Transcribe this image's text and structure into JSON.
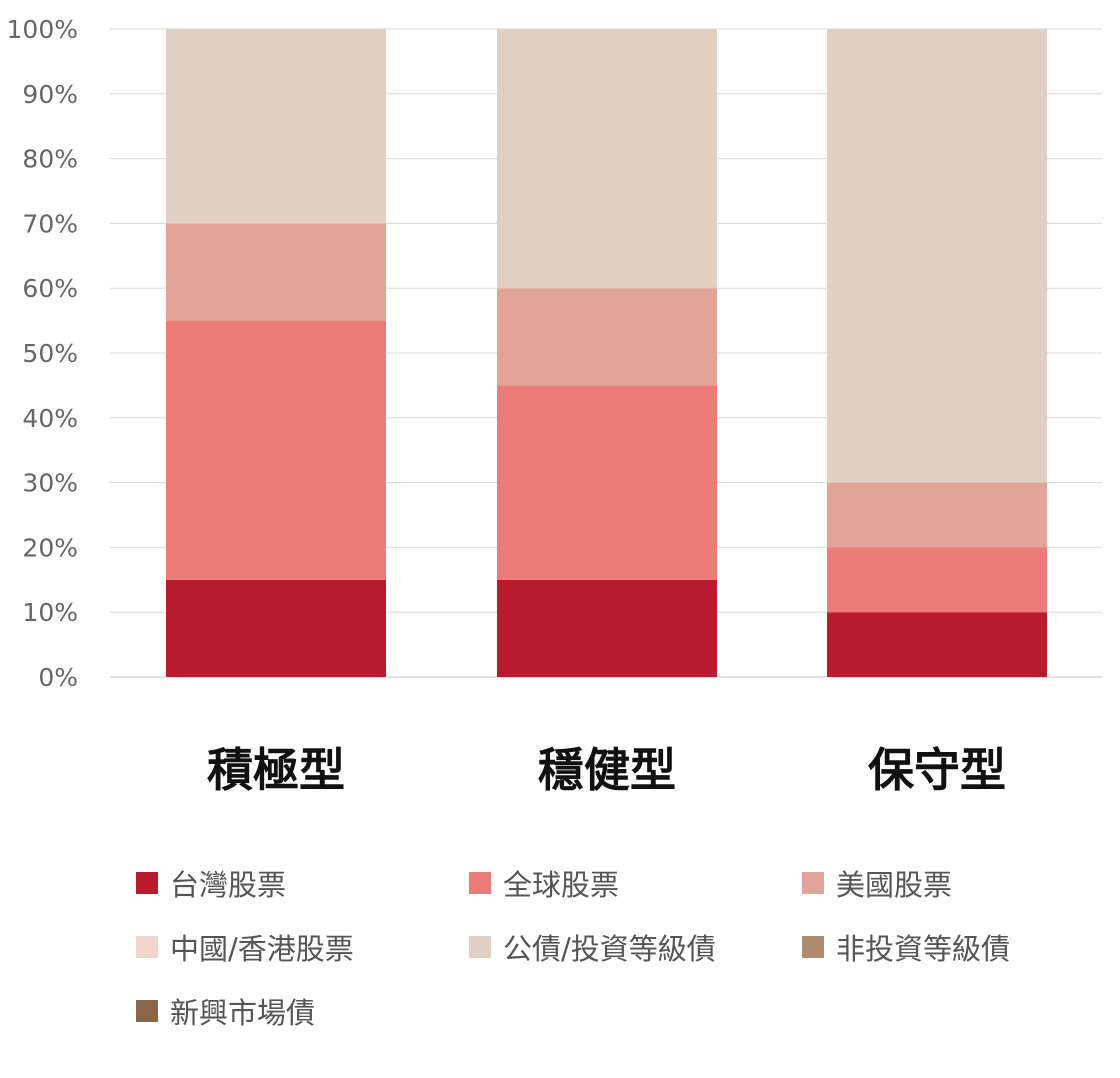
{
  "chart_data": {
    "type": "bar",
    "stacked": true,
    "categories": [
      "積極型",
      "穩健型",
      "保守型"
    ],
    "ylim": [
      0,
      100
    ],
    "yticks": [
      "0%",
      "10%",
      "20%",
      "30%",
      "40%",
      "50%",
      "60%",
      "70%",
      "80%",
      "90%",
      "100%"
    ],
    "grid": true,
    "legend_position": "bottom",
    "series": [
      {
        "name": "台灣股票",
        "color": "#b81c2e",
        "values": [
          15,
          15,
          10
        ]
      },
      {
        "name": "全球股票",
        "color": "#ed7c78",
        "values": [
          40,
          30,
          10
        ]
      },
      {
        "name": "美國股票",
        "color": "#e2a398",
        "values": [
          15,
          15,
          10
        ]
      },
      {
        "name": "中國/香港股票",
        "color": "#f2d5cb",
        "values": [
          0,
          0,
          0
        ]
      },
      {
        "name": "公債/投資等級債",
        "color": "#e0d1c4",
        "values": [
          30,
          40,
          70
        ]
      },
      {
        "name": "非投資等級債",
        "color": "#ae8a6c",
        "values": [
          0,
          0,
          0
        ]
      },
      {
        "name": "新興市場債",
        "color": "#86654a",
        "values": [
          0,
          0,
          0
        ]
      }
    ]
  }
}
